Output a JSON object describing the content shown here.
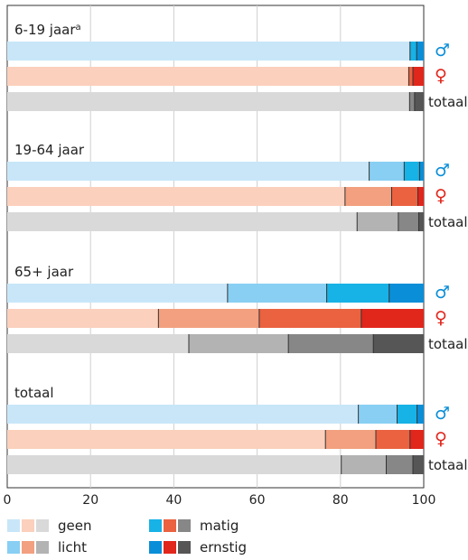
{
  "chart_data": {
    "type": "bar",
    "orientation": "horizontal",
    "stacked": true,
    "xlim": [
      0,
      100
    ],
    "xticks": [
      0,
      20,
      40,
      60,
      80,
      100
    ],
    "grid": true,
    "segments": [
      "geen",
      "licht",
      "matig",
      "ernstig"
    ],
    "palettes": {
      "male": [
        "#c8e6f8",
        "#88cff3",
        "#17b2e6",
        "#0a8ed8"
      ],
      "female": [
        "#fbd0bc",
        "#f2a07f",
        "#ea6240",
        "#e1261c"
      ],
      "total": [
        "#d9d9d9",
        "#b3b3b3",
        "#878787",
        "#565656"
      ]
    },
    "groups": [
      {
        "title": "6-19 jaar",
        "title_sup": "a",
        "bars": [
          {
            "label": "♂",
            "kind": "male",
            "values": [
              96.7,
              0,
              1.6,
              1.7
            ]
          },
          {
            "label": "♀",
            "kind": "female",
            "values": [
              96.4,
              0,
              1.0,
              2.6
            ]
          },
          {
            "label": "totaal",
            "kind": "total",
            "values": [
              96.6,
              0,
              1.2,
              2.2
            ]
          }
        ]
      },
      {
        "title": "19-64 jaar",
        "title_sup": "",
        "bars": [
          {
            "label": "♂",
            "kind": "male",
            "values": [
              86.9,
              8.4,
              3.7,
              1.0
            ]
          },
          {
            "label": "♀",
            "kind": "female",
            "values": [
              81.1,
              11.2,
              6.3,
              1.4
            ]
          },
          {
            "label": "totaal",
            "kind": "total",
            "values": [
              84.0,
              9.9,
              4.9,
              1.2
            ]
          }
        ]
      },
      {
        "title": "65+ jaar",
        "title_sup": "",
        "bars": [
          {
            "label": "♂",
            "kind": "male",
            "values": [
              52.9,
              23.8,
              15.0,
              8.3
            ]
          },
          {
            "label": "♀",
            "kind": "female",
            "values": [
              36.3,
              24.2,
              24.5,
              15.0
            ]
          },
          {
            "label": "totaal",
            "kind": "total",
            "values": [
              43.6,
              23.9,
              20.4,
              12.1
            ]
          }
        ]
      },
      {
        "title": "totaal",
        "title_sup": "",
        "bars": [
          {
            "label": "♂",
            "kind": "male",
            "values": [
              84.3,
              9.3,
              4.8,
              1.6
            ]
          },
          {
            "label": "♀",
            "kind": "female",
            "values": [
              76.4,
              12.1,
              8.2,
              3.3
            ]
          },
          {
            "label": "totaal",
            "kind": "total",
            "values": [
              80.2,
              10.8,
              6.4,
              2.6
            ]
          }
        ]
      }
    ]
  },
  "legend": {
    "items": [
      {
        "label": "geen"
      },
      {
        "label": "licht"
      },
      {
        "label": "matig"
      },
      {
        "label": "ernstig"
      }
    ]
  }
}
